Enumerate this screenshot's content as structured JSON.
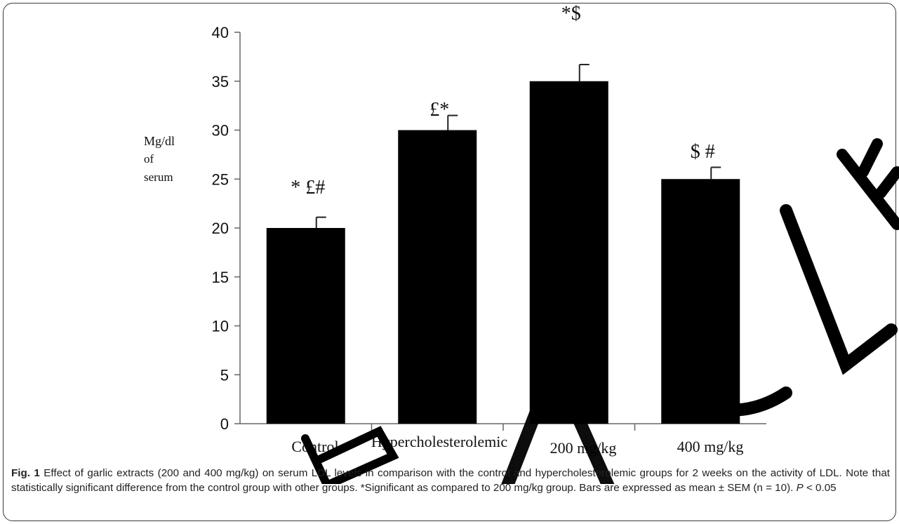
{
  "chart_data": {
    "type": "bar",
    "categories": [
      "Control",
      "Hypercholesterolemic",
      "200 mg/kg",
      "400 mg/kg"
    ],
    "values": [
      20,
      30,
      35,
      25
    ],
    "errors": [
      1.1,
      1.5,
      1.7,
      1.2
    ],
    "significance_labels": [
      "* £#",
      "£*",
      "*$",
      "$ #"
    ],
    "ylabel_lines": [
      "Mg/dl",
      "of",
      "serum"
    ],
    "ylim": [
      0,
      40
    ],
    "yticks": [
      0,
      5,
      10,
      15,
      20,
      25,
      30,
      35,
      40
    ],
    "grid": false,
    "bar_color": "#000000"
  },
  "caption": {
    "fig_label": "Fig. 1",
    "text_main": " Effect of garlic extracts (200 and 400 mg/kg) on serum LDL levels in comparison with the control and hypercholesterolemic groups for 2 weeks on the activity of LDL. Note that statistically significant difference from the control group with other groups. *Significant as compared to 200 mg/kg group. Bars are expressed as mean ± SEM (n = 10). ",
    "p_symbol": "P",
    "p_rest": " < 0.05"
  },
  "watermark": {
    "color": "#000000"
  }
}
